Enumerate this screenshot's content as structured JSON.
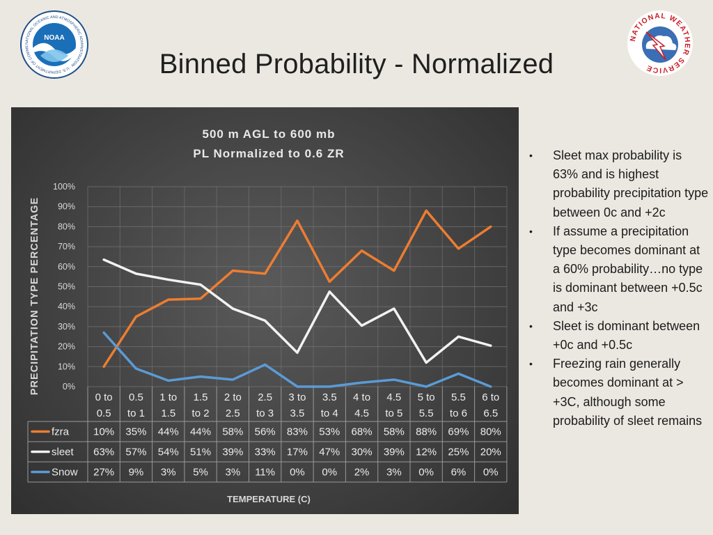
{
  "slide": {
    "title": "Binned Probability - Normalized"
  },
  "logos": {
    "noaa": {
      "text": "NOAA",
      "ring_text": "NATIONAL OCEANIC AND ATMOSPHERIC ADMINISTRATION · U.S. DEPARTMENT OF COMMERCE"
    },
    "nws": {
      "ring_text": "NATIONAL WEATHER SERVICE"
    }
  },
  "chart_data": {
    "type": "line",
    "title_lines": [
      "500 m AGL to 600 mb",
      "PL Normalized to 0.6 ZR"
    ],
    "xlabel": "TEMPERATURE (C)",
    "ylabel": "PRECIPITATION TYPE PERCENTAGE",
    "ylim": [
      0,
      100
    ],
    "yticks": [
      "0%",
      "10%",
      "20%",
      "30%",
      "40%",
      "50%",
      "60%",
      "70%",
      "80%",
      "90%",
      "100%"
    ],
    "categories": [
      [
        "0 to",
        "0.5"
      ],
      [
        "0.5",
        "to 1"
      ],
      [
        "1 to",
        "1.5"
      ],
      [
        "1.5",
        "to 2"
      ],
      [
        "2 to",
        "2.5"
      ],
      [
        "2.5",
        "to 3"
      ],
      [
        "3 to",
        "3.5"
      ],
      [
        "3.5",
        "to 4"
      ],
      [
        "4 to",
        "4.5"
      ],
      [
        "4.5",
        "to 5"
      ],
      [
        "5 to",
        "5.5"
      ],
      [
        "5.5",
        "to 6"
      ],
      [
        "6 to",
        "6.5"
      ]
    ],
    "grid": true,
    "legend": "data-table",
    "series": [
      {
        "name": "fzra",
        "color": "#ed7d31",
        "values": [
          10,
          35,
          43.5,
          44,
          58,
          56.5,
          83,
          52.5,
          68,
          58,
          88,
          69,
          80
        ],
        "labels": [
          "10%",
          "35%",
          "44%",
          "44%",
          "58%",
          "56%",
          "83%",
          "53%",
          "68%",
          "58%",
          "88%",
          "69%",
          "80%"
        ]
      },
      {
        "name": "sleet",
        "color": "#f2f2f2",
        "values": [
          63.5,
          56.5,
          53.5,
          51,
          39,
          33,
          17,
          47.5,
          30.5,
          39,
          12,
          25,
          20.5
        ],
        "labels": [
          "63%",
          "57%",
          "54%",
          "51%",
          "39%",
          "33%",
          "17%",
          "47%",
          "30%",
          "39%",
          "12%",
          "25%",
          "20%"
        ]
      },
      {
        "name": "Snow",
        "color": "#5b9bd5",
        "values": [
          27,
          9,
          3,
          5,
          3.5,
          11,
          0,
          0,
          2,
          3.5,
          0,
          6.5,
          0
        ],
        "labels": [
          "27%",
          "9%",
          "3%",
          "5%",
          "3%",
          "11%",
          "0%",
          "0%",
          "2%",
          "3%",
          "0%",
          "6%",
          "0%"
        ]
      }
    ]
  },
  "bullets": [
    "Sleet max probability is 63% and is highest probability precipitation type between 0c and +2c",
    "If assume a precipitation type becomes dominant at a 60% probability…no type is dominant between +0.5c and +3c",
    "Sleet is dominant between +0c and +0.5c",
    "Freezing rain generally becomes dominant at > +3C, although some probability of sleet remains"
  ]
}
